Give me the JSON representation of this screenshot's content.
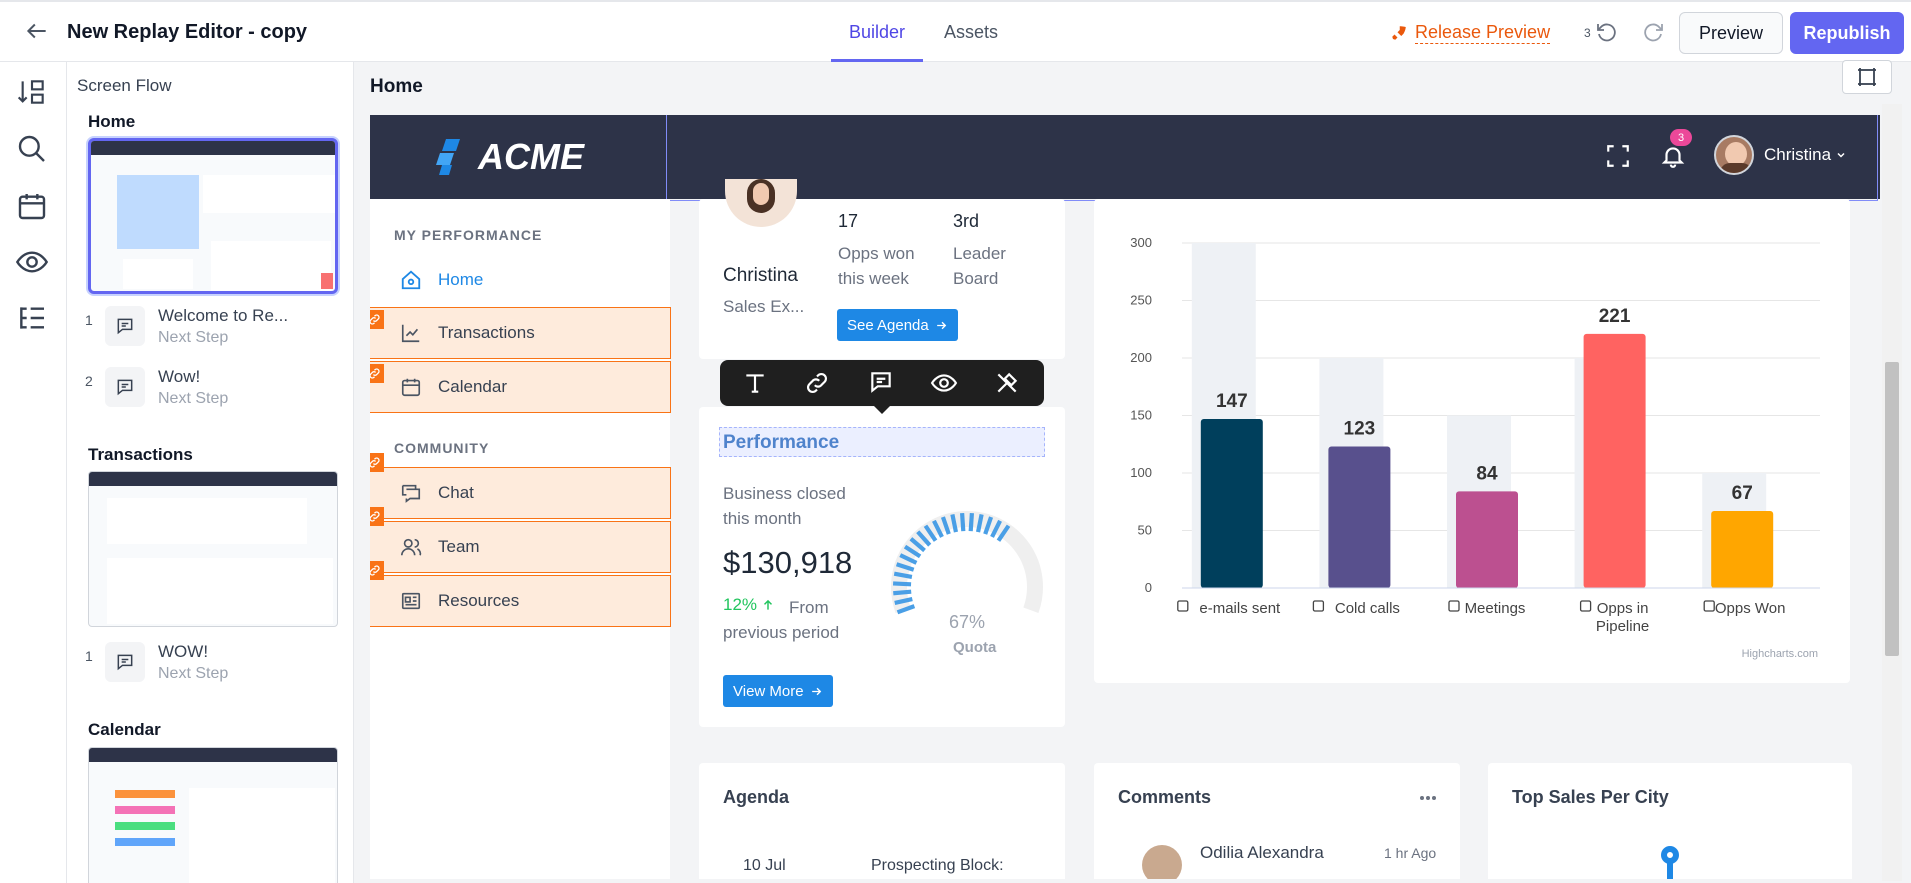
{
  "topbar": {
    "title": "New Replay Editor - copy",
    "tabs": [
      {
        "label": "Builder",
        "active": true
      },
      {
        "label": "Assets",
        "active": false
      }
    ],
    "release_preview": "Release Preview",
    "undo_count": "3",
    "preview_label": "Preview",
    "republish_label": "Republish"
  },
  "flow": {
    "title": "Screen Flow",
    "sections": [
      {
        "name": "Home",
        "steps": [
          {
            "num": "1",
            "title": "Welcome to Re...",
            "sub": "Next Step"
          },
          {
            "num": "2",
            "title": "Wow!",
            "sub": "Next Step"
          }
        ]
      },
      {
        "name": "Transactions",
        "steps": [
          {
            "num": "1",
            "title": "WOW!",
            "sub": "Next Step"
          }
        ]
      },
      {
        "name": "Calendar",
        "steps": []
      }
    ]
  },
  "canvas": {
    "screen_title": "Home"
  },
  "app": {
    "logo": "ACME",
    "notification_count": "3",
    "user_name": "Christina",
    "nav": {
      "section1": "MY PERFORMANCE",
      "items1": [
        "Home",
        "Transactions",
        "Calendar"
      ],
      "section2": "COMMUNITY",
      "items2": [
        "Chat",
        "Team",
        "Resources"
      ]
    },
    "profile": {
      "name": "Christina",
      "role": "Sales Ex...",
      "stat1_value": "17",
      "stat1_label": "Opps won this week",
      "stat2_value": "3rd",
      "stat2_label": "Leader Board",
      "button": "See Agenda"
    },
    "performance": {
      "title": "Performance",
      "label": "Business closed this month",
      "amount": "$130,918",
      "change": "12%",
      "change_label": "From previous period",
      "gauge_value": "67%",
      "gauge_label": "Quota",
      "gauge_fraction": 0.67,
      "button": "View More"
    },
    "bottom_cards": {
      "agenda": "Agenda",
      "agenda_date": "10 Jul",
      "agenda_item": "Prospecting Block:",
      "comments": "Comments",
      "comment_author": "Odilia Alexandra",
      "comment_time": "1 hr Ago",
      "top_sales": "Top Sales Per City"
    },
    "chart_credit": "Highcharts.com"
  },
  "chart_data": {
    "type": "bar",
    "categories": [
      "e-mails sent",
      "Cold calls",
      "Meetings",
      "Opps in Pipeline",
      "Opps Won"
    ],
    "values": [
      147,
      123,
      84,
      221,
      67
    ],
    "background_values": [
      300,
      200,
      150,
      200,
      100
    ],
    "colors": [
      "#003f5c",
      "#58508d",
      "#bc5090",
      "#ff6361",
      "#ffa600"
    ],
    "ylim": [
      0,
      300
    ],
    "yticks": [
      0,
      50,
      100,
      150,
      200,
      250,
      300
    ],
    "grid": true,
    "title": "",
    "xlabel": "",
    "ylabel": ""
  },
  "colors": {
    "accent": "#6366f1",
    "highlight": "#f97316",
    "app_header": "#2d3348",
    "link_blue": "#1e88e5"
  }
}
